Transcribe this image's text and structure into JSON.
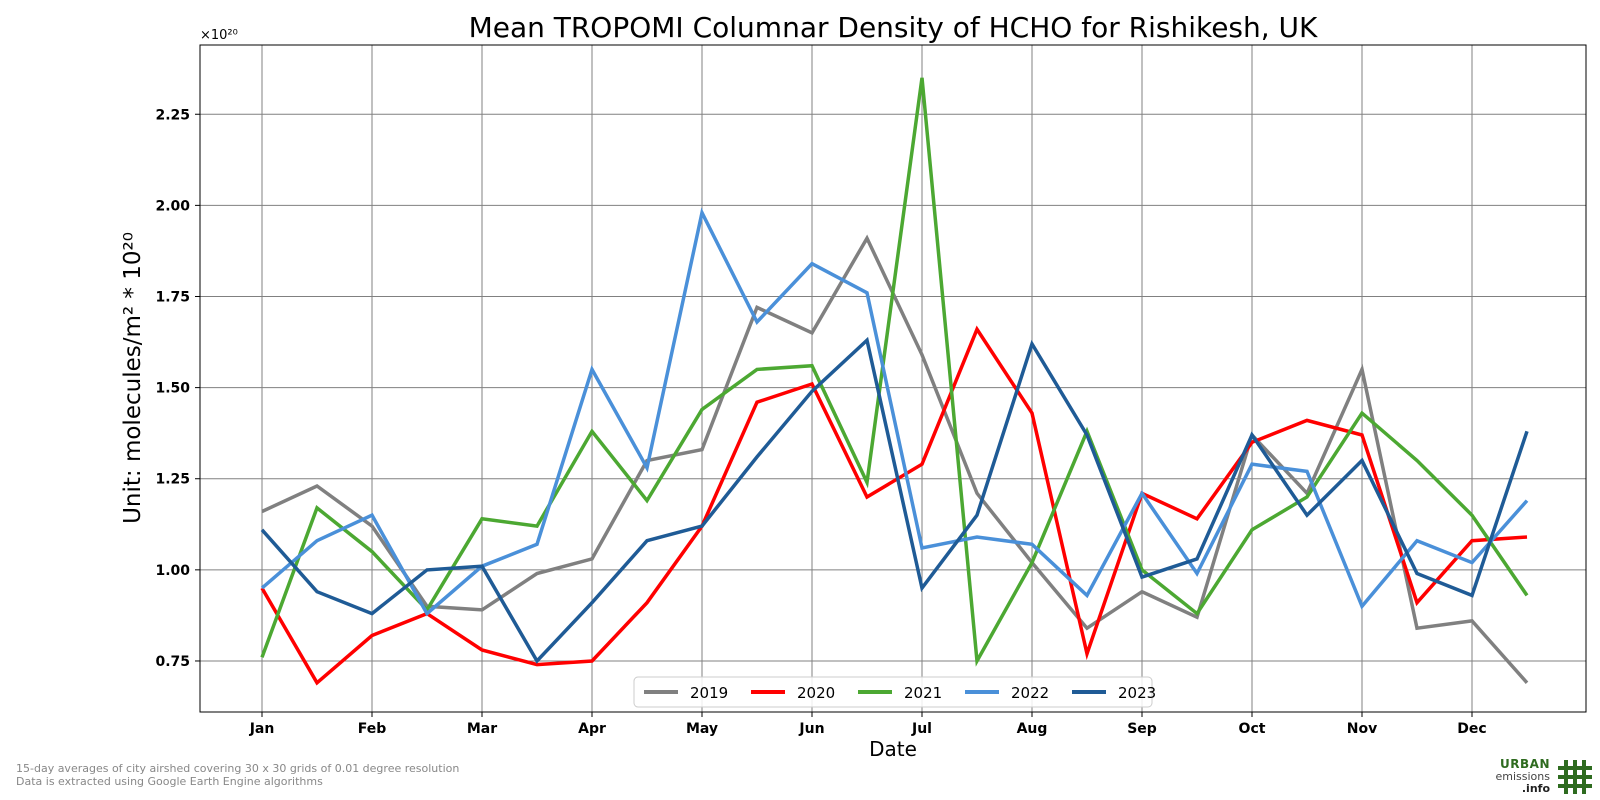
{
  "chart_data": {
    "type": "line",
    "title": "Mean TROPOMI Columnar Density of HCHO for Rishikesh, UK",
    "xlabel": "Date",
    "ylabel": "Unit: molecules/m² * 10²⁰",
    "offset_text": "×10²⁰",
    "x": [
      "Jan",
      "",
      "Feb",
      "",
      "Mar",
      "",
      "Apr",
      "",
      "May",
      "",
      "Jun",
      "",
      "Jul",
      "",
      "Aug",
      "",
      "Sep",
      "",
      "Oct",
      "",
      "Nov",
      "",
      "Dec",
      ""
    ],
    "month_ticks": [
      "Jan",
      "Feb",
      "Mar",
      "Apr",
      "May",
      "Jun",
      "Jul",
      "Aug",
      "Sep",
      "Oct",
      "Nov",
      "Dec"
    ],
    "yticks": [
      "0.75",
      "1.00",
      "1.25",
      "1.50",
      "1.75",
      "2.00",
      "2.25"
    ],
    "ylim": [
      0.61,
      2.44
    ],
    "grid": true,
    "legend_position": "bottom-center",
    "series": [
      {
        "name": "2019",
        "color": "#808080",
        "values": [
          1.16,
          1.23,
          1.12,
          0.9,
          0.89,
          0.99,
          1.03,
          1.3,
          1.33,
          1.72,
          1.65,
          1.91,
          1.59,
          1.21,
          1.02,
          0.84,
          0.94,
          0.87,
          1.37,
          1.21,
          1.55,
          0.84,
          0.86,
          0.69
        ]
      },
      {
        "name": "2020",
        "color": "#ff0000",
        "values": [
          0.95,
          0.69,
          0.82,
          0.88,
          0.78,
          0.74,
          0.75,
          0.91,
          1.12,
          1.46,
          1.51,
          1.2,
          1.29,
          1.66,
          1.43,
          0.77,
          1.21,
          1.14,
          1.35,
          1.41,
          1.37,
          0.91,
          1.08,
          1.09
        ]
      },
      {
        "name": "2021",
        "color": "#4ca832",
        "values": [
          0.76,
          1.17,
          1.05,
          0.89,
          1.14,
          1.12,
          1.38,
          1.19,
          1.44,
          1.55,
          1.56,
          1.24,
          2.35,
          0.75,
          1.02,
          1.38,
          1.0,
          0.88,
          1.11,
          1.2,
          1.43,
          1.3,
          1.15,
          0.93
        ]
      },
      {
        "name": "2022",
        "color": "#4a90d9",
        "values": [
          0.95,
          1.08,
          1.15,
          0.88,
          1.01,
          1.07,
          1.55,
          1.28,
          1.98,
          1.68,
          1.84,
          1.76,
          1.06,
          1.09,
          1.07,
          0.93,
          1.21,
          0.99,
          1.29,
          1.27,
          0.9,
          1.08,
          1.02,
          1.19
        ]
      },
      {
        "name": "2023",
        "color": "#1f5b96",
        "values": [
          1.11,
          0.94,
          0.88,
          1.0,
          1.01,
          0.75,
          0.91,
          1.08,
          1.12,
          1.31,
          1.49,
          1.63,
          0.95,
          1.15,
          1.62,
          1.37,
          0.98,
          1.03,
          1.37,
          1.15,
          1.3,
          0.99,
          0.93,
          1.38
        ]
      }
    ]
  },
  "footnote": {
    "line1": "15-day averages of city airshed covering 30 x 30 grids of 0.01 degree resolution",
    "line2": "Data is extracted using Google Earth Engine algorithms"
  },
  "logo": {
    "line1": "URBAN",
    "line2": "emissions",
    "line3": ".info",
    "color": "#2e6b1f"
  }
}
